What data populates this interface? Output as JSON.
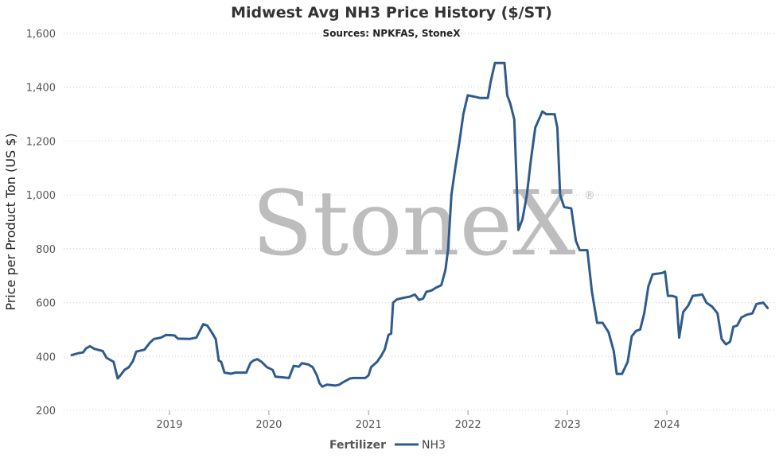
{
  "chart_data": {
    "type": "line",
    "title": "Midwest Avg NH3 Price History ($/ST)",
    "subtitle": "Sources: NPKFAS, StoneX",
    "ylabel": "Price per Product Ton (US $)",
    "xlabel": "",
    "ylim": [
      200,
      1600
    ],
    "yticks": [
      200,
      400,
      600,
      800,
      1000,
      1200,
      1400,
      1600
    ],
    "ytick_labels": [
      "200",
      "400",
      "600",
      "800",
      "1,000",
      "1,200",
      "1,400",
      "1,600"
    ],
    "xlim": [
      "2018-01-01",
      "2024-12-31"
    ],
    "xticks": [
      "2019-01-01",
      "2020-01-01",
      "2021-01-01",
      "2022-01-01",
      "2023-01-01",
      "2024-01-01"
    ],
    "xtick_labels": [
      "2019",
      "2020",
      "2021",
      "2022",
      "2023",
      "2024"
    ],
    "grid": "horizontal dotted",
    "legend": {
      "title": "Fertilizer",
      "position": "bottom-center"
    },
    "watermark": "StoneX",
    "watermark_mark": "®",
    "series": [
      {
        "name": "NH3",
        "color": "#2f5b8c",
        "points": [
          [
            "2018-01-07",
            405
          ],
          [
            "2018-02-01",
            412
          ],
          [
            "2018-02-18",
            415
          ],
          [
            "2018-03-01",
            430
          ],
          [
            "2018-03-15",
            438
          ],
          [
            "2018-04-01",
            428
          ],
          [
            "2018-05-01",
            420
          ],
          [
            "2018-05-15",
            395
          ],
          [
            "2018-06-10",
            380
          ],
          [
            "2018-06-25",
            318
          ],
          [
            "2018-07-05",
            330
          ],
          [
            "2018-07-20",
            350
          ],
          [
            "2018-08-05",
            360
          ],
          [
            "2018-08-20",
            383
          ],
          [
            "2018-09-01",
            418
          ],
          [
            "2018-10-01",
            425
          ],
          [
            "2018-10-20",
            450
          ],
          [
            "2018-11-05",
            465
          ],
          [
            "2018-12-01",
            470
          ],
          [
            "2018-12-20",
            480
          ],
          [
            "2019-01-20",
            478
          ],
          [
            "2019-02-01",
            466
          ],
          [
            "2019-03-15",
            465
          ],
          [
            "2019-04-10",
            470
          ],
          [
            "2019-04-25",
            500
          ],
          [
            "2019-05-05",
            520
          ],
          [
            "2019-05-20",
            515
          ],
          [
            "2019-06-05",
            490
          ],
          [
            "2019-06-20",
            465
          ],
          [
            "2019-07-01",
            385
          ],
          [
            "2019-07-10",
            380
          ],
          [
            "2019-07-22",
            340
          ],
          [
            "2019-08-15",
            336
          ],
          [
            "2019-09-01",
            340
          ],
          [
            "2019-10-10",
            340
          ],
          [
            "2019-10-25",
            375
          ],
          [
            "2019-11-05",
            385
          ],
          [
            "2019-11-20",
            390
          ],
          [
            "2019-12-05",
            380
          ],
          [
            "2019-12-25",
            360
          ],
          [
            "2020-01-15",
            350
          ],
          [
            "2020-01-25",
            325
          ],
          [
            "2020-02-15",
            323
          ],
          [
            "2020-03-15",
            320
          ],
          [
            "2020-04-01",
            365
          ],
          [
            "2020-04-20",
            362
          ],
          [
            "2020-05-01",
            375
          ],
          [
            "2020-05-25",
            370
          ],
          [
            "2020-06-10",
            360
          ],
          [
            "2020-06-25",
            330
          ],
          [
            "2020-07-05",
            300
          ],
          [
            "2020-07-15",
            288
          ],
          [
            "2020-08-01",
            295
          ],
          [
            "2020-09-01",
            292
          ],
          [
            "2020-09-15",
            295
          ],
          [
            "2020-10-01",
            305
          ],
          [
            "2020-10-25",
            318
          ],
          [
            "2020-11-05",
            320
          ],
          [
            "2020-12-20",
            320
          ],
          [
            "2021-01-01",
            330
          ],
          [
            "2021-01-10",
            360
          ],
          [
            "2021-02-01",
            380
          ],
          [
            "2021-02-15",
            400
          ],
          [
            "2021-03-01",
            425
          ],
          [
            "2021-03-15",
            480
          ],
          [
            "2021-03-25",
            485
          ],
          [
            "2021-04-01",
            600
          ],
          [
            "2021-04-15",
            612
          ],
          [
            "2021-05-10",
            618
          ],
          [
            "2021-06-01",
            622
          ],
          [
            "2021-06-20",
            630
          ],
          [
            "2021-07-05",
            610
          ],
          [
            "2021-07-20",
            615
          ],
          [
            "2021-08-01",
            640
          ],
          [
            "2021-08-20",
            645
          ],
          [
            "2021-09-05",
            655
          ],
          [
            "2021-09-25",
            665
          ],
          [
            "2021-10-10",
            720
          ],
          [
            "2021-10-20",
            800
          ],
          [
            "2021-11-01",
            1000
          ],
          [
            "2021-11-15",
            1100
          ],
          [
            "2021-12-01",
            1200
          ],
          [
            "2021-12-15",
            1300
          ],
          [
            "2021-12-31",
            1370
          ],
          [
            "2022-01-25",
            1365
          ],
          [
            "2022-02-15",
            1360
          ],
          [
            "2022-03-15",
            1360
          ],
          [
            "2022-03-25",
            1420
          ],
          [
            "2022-04-10",
            1490
          ],
          [
            "2022-05-15",
            1490
          ],
          [
            "2022-05-25",
            1370
          ],
          [
            "2022-06-05",
            1340
          ],
          [
            "2022-06-20",
            1280
          ],
          [
            "2022-07-05",
            870
          ],
          [
            "2022-07-20",
            910
          ],
          [
            "2022-08-05",
            1000
          ],
          [
            "2022-08-20",
            1130
          ],
          [
            "2022-09-05",
            1250
          ],
          [
            "2022-10-01",
            1310
          ],
          [
            "2022-10-15",
            1300
          ],
          [
            "2022-11-15",
            1300
          ],
          [
            "2022-11-25",
            1250
          ],
          [
            "2022-12-05",
            1000
          ],
          [
            "2022-12-20",
            955
          ],
          [
            "2023-01-15",
            950
          ],
          [
            "2023-02-01",
            830
          ],
          [
            "2023-02-15",
            795
          ],
          [
            "2023-03-15",
            795
          ],
          [
            "2023-04-01",
            640
          ],
          [
            "2023-04-20",
            525
          ],
          [
            "2023-05-10",
            525
          ],
          [
            "2023-06-01",
            490
          ],
          [
            "2023-06-20",
            420
          ],
          [
            "2023-07-01",
            335
          ],
          [
            "2023-07-20",
            335
          ],
          [
            "2023-08-10",
            380
          ],
          [
            "2023-08-25",
            475
          ],
          [
            "2023-09-10",
            495
          ],
          [
            "2023-09-25",
            500
          ],
          [
            "2023-10-10",
            560
          ],
          [
            "2023-10-25",
            660
          ],
          [
            "2023-11-10",
            705
          ],
          [
            "2023-12-15",
            710
          ],
          [
            "2023-12-25",
            715
          ],
          [
            "2024-01-05",
            625
          ],
          [
            "2024-01-20",
            625
          ],
          [
            "2024-02-05",
            620
          ],
          [
            "2024-02-15",
            470
          ],
          [
            "2024-03-01",
            565
          ],
          [
            "2024-03-20",
            590
          ],
          [
            "2024-04-05",
            625
          ],
          [
            "2024-05-10",
            630
          ],
          [
            "2024-05-25",
            600
          ],
          [
            "2024-06-15",
            585
          ],
          [
            "2024-07-05",
            560
          ],
          [
            "2024-07-20",
            465
          ],
          [
            "2024-08-05",
            445
          ],
          [
            "2024-08-20",
            455
          ],
          [
            "2024-09-01",
            510
          ],
          [
            "2024-09-15",
            515
          ],
          [
            "2024-10-01",
            545
          ],
          [
            "2024-10-20",
            555
          ],
          [
            "2024-11-10",
            560
          ],
          [
            "2024-11-25",
            595
          ],
          [
            "2024-12-20",
            600
          ],
          [
            "2025-01-05",
            580
          ]
        ]
      }
    ]
  }
}
